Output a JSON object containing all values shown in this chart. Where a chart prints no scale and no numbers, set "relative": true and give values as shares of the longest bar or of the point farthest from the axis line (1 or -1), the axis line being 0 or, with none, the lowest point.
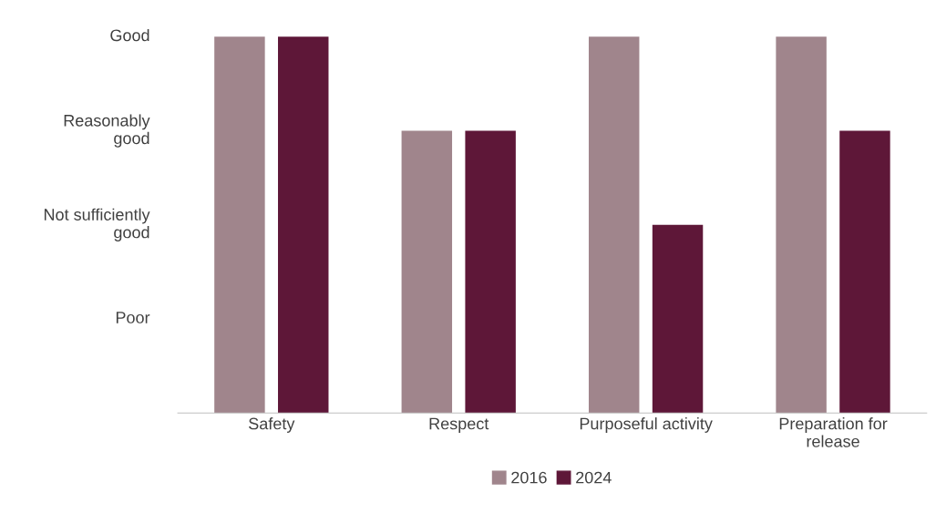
{
  "chart_data": {
    "type": "bar",
    "relative": true,
    "categories": [
      "Safety",
      "Respect",
      "Purposeful activity",
      "Preparation for release"
    ],
    "series": [
      {
        "name": "2016",
        "color": "#a0858c",
        "values": [
          1,
          0.75,
          1,
          1
        ]
      },
      {
        "name": "2024",
        "color": "#5e1738",
        "values": [
          1,
          0.75,
          0.5,
          0.75
        ]
      }
    ],
    "annotations": [
      "Poor",
      "Not sufficiently good",
      "Reasonably good",
      "Good"
    ],
    "grid": false,
    "legend": "bottom"
  }
}
